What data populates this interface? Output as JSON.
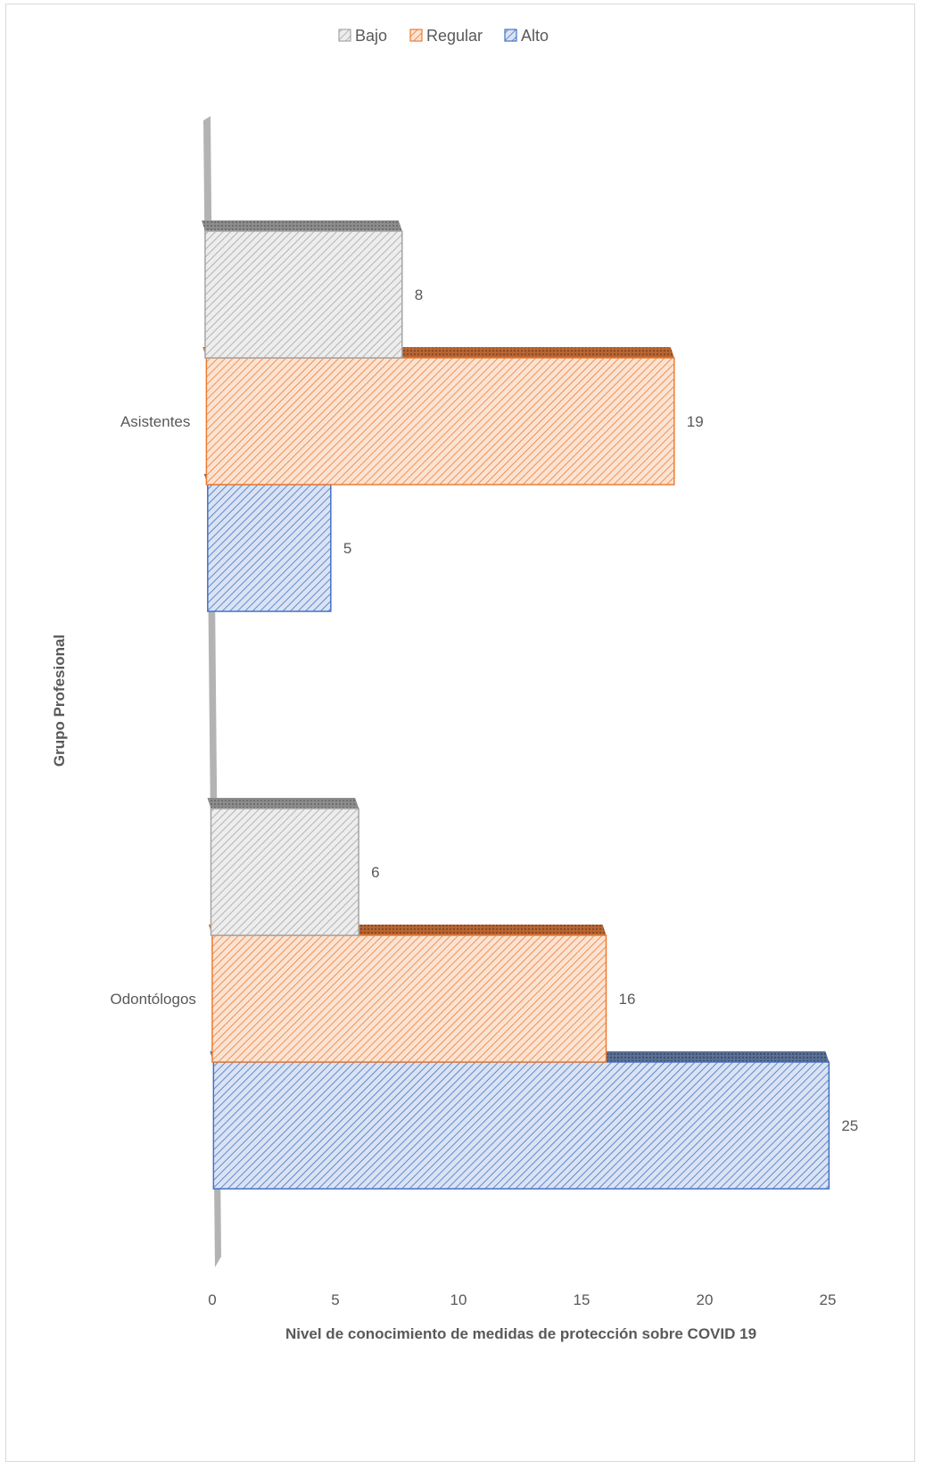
{
  "chart_data": {
    "type": "bar",
    "orientation": "horizontal",
    "three_d": true,
    "categories": [
      "Asistentes",
      "Odontólogos"
    ],
    "series": [
      {
        "name": "Bajo",
        "values": [
          8,
          6
        ],
        "color": "#a5a5a5"
      },
      {
        "name": "Regular",
        "values": [
          19,
          16
        ],
        "color": "#ed7d31"
      },
      {
        "name": "Alto",
        "values": [
          5,
          25
        ],
        "color": "#4472c4"
      }
    ],
    "xlabel": "Nivel de conocimiento de medidas de protección sobre COVID 19",
    "ylabel": "Grupo Profesional",
    "xlim": [
      0,
      25
    ],
    "xticks": [
      "0",
      "5",
      "10",
      "15",
      "20",
      "25"
    ],
    "legend_position": "top",
    "grid": false,
    "data_labels": true
  }
}
